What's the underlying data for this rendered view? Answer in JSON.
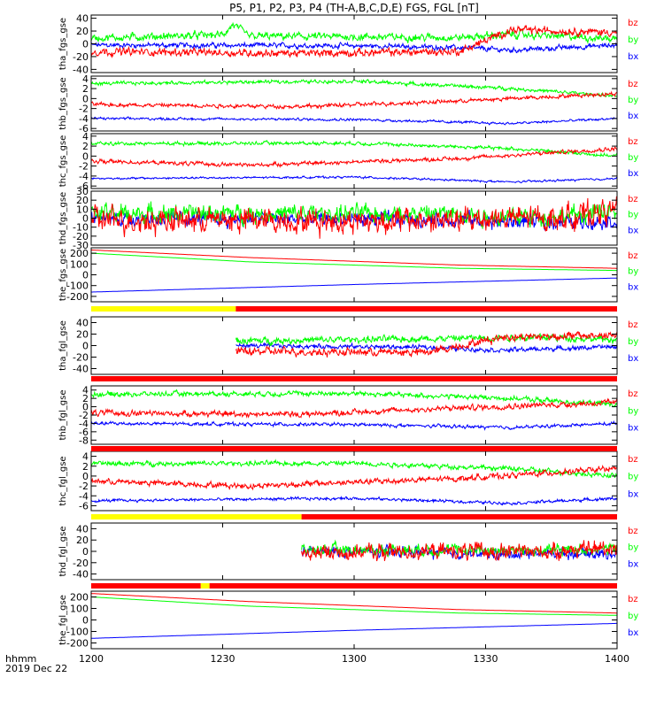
{
  "title": "P5, P1, P2, P3, P4 (TH-A,B,C,D,E) FGS, FGL [nT]",
  "colors": {
    "bx": "#0000ff",
    "by": "#00ff00",
    "bz": "#ff0000",
    "bar_yellow": "#ffff00",
    "bar_red": "#ff0000"
  },
  "xaxis": {
    "label_line1": "hhmm",
    "label_line2": "2019 Dec 22",
    "range": [
      "12:00",
      "14:00"
    ],
    "ticks": [
      {
        "t": "12:00",
        "label": "1200"
      },
      {
        "t": "12:30",
        "label": "1230"
      },
      {
        "t": "13:00",
        "label": "1300"
      },
      {
        "t": "13:30",
        "label": "1330"
      },
      {
        "t": "14:00",
        "label": "1400"
      }
    ]
  },
  "chart_data": [
    {
      "type": "line",
      "ylabel": "tha_fgs_gse",
      "ylim": [
        -45,
        45
      ],
      "yticks": [
        -40,
        -20,
        0,
        20,
        40
      ],
      "data_start": "12:00",
      "data_end": "14:00",
      "legend": [
        "bz",
        "by",
        "bx"
      ],
      "series": [
        {
          "name": "bx",
          "profile": [
            [
              0,
              -2
            ],
            [
              0.5,
              -3
            ],
            [
              0.7,
              -6
            ],
            [
              0.8,
              -10
            ],
            [
              1,
              -2
            ]
          ],
          "noise": 4
        },
        {
          "name": "by",
          "profile": [
            [
              0,
              9
            ],
            [
              0.25,
              14
            ],
            [
              0.27,
              30
            ],
            [
              0.3,
              12
            ],
            [
              0.7,
              10
            ],
            [
              0.8,
              15
            ],
            [
              1,
              8
            ]
          ],
          "noise": 6
        },
        {
          "name": "bz",
          "profile": [
            [
              0,
              -12
            ],
            [
              0.4,
              -15
            ],
            [
              0.7,
              -12
            ],
            [
              0.8,
              22
            ],
            [
              1,
              18
            ]
          ],
          "noise": 6
        }
      ]
    },
    {
      "type": "line",
      "ylabel": "thb_fgs_gse",
      "ylim": [
        -6.5,
        4.5
      ],
      "yticks": [
        -6,
        -4,
        -2,
        0,
        2,
        4
      ],
      "data_start": "12:00",
      "data_end": "14:00",
      "legend": [
        "bz",
        "by",
        "bx"
      ],
      "series": [
        {
          "name": "bx",
          "profile": [
            [
              0,
              -4
            ],
            [
              0.5,
              -4.2
            ],
            [
              0.8,
              -5
            ],
            [
              1,
              -4
            ]
          ],
          "noise": 0.25
        },
        {
          "name": "by",
          "profile": [
            [
              0,
              3
            ],
            [
              0.5,
              3.5
            ],
            [
              0.8,
              2
            ],
            [
              1,
              0.5
            ]
          ],
          "noise": 0.35
        },
        {
          "name": "bz",
          "profile": [
            [
              0,
              -1.2
            ],
            [
              0.4,
              -1.6
            ],
            [
              0.7,
              -0.5
            ],
            [
              1,
              1
            ]
          ],
          "noise": 0.4
        }
      ]
    },
    {
      "type": "line",
      "ylabel": "thc_fgs_gse",
      "ylim": [
        -6.5,
        4.5
      ],
      "yticks": [
        -6,
        -4,
        -2,
        0,
        2,
        4
      ],
      "data_start": "12:00",
      "data_end": "14:00",
      "legend": [
        "bz",
        "by",
        "bx"
      ],
      "series": [
        {
          "name": "bx",
          "profile": [
            [
              0,
              -4.5
            ],
            [
              0.5,
              -4.2
            ],
            [
              0.8,
              -5.2
            ],
            [
              1,
              -4.5
            ]
          ],
          "noise": 0.2
        },
        {
          "name": "by",
          "profile": [
            [
              0,
              2.5
            ],
            [
              0.5,
              2.6
            ],
            [
              0.8,
              1.5
            ],
            [
              1,
              0
            ]
          ],
          "noise": 0.35
        },
        {
          "name": "bz",
          "profile": [
            [
              0,
              -1
            ],
            [
              0.3,
              -1.8
            ],
            [
              0.7,
              -0.5
            ],
            [
              1,
              1.5
            ]
          ],
          "noise": 0.4
        }
      ]
    },
    {
      "type": "line",
      "ylabel": "thd_fgs_gse",
      "ylim": [
        -30,
        30
      ],
      "yticks": [
        -30,
        -20,
        -10,
        0,
        10,
        20,
        30
      ],
      "data_start": "12:00",
      "data_end": "14:00",
      "legend": [
        "bz",
        "by",
        "bx"
      ],
      "series": [
        {
          "name": "bx",
          "profile": [
            [
              0,
              0
            ],
            [
              0.72,
              -2
            ],
            [
              0.74,
              -4
            ],
            [
              0.9,
              -4
            ],
            [
              1,
              -3
            ]
          ],
          "noise": 8
        },
        {
          "name": "by",
          "profile": [
            [
              0,
              5
            ],
            [
              0.72,
              5
            ],
            [
              0.74,
              2
            ],
            [
              0.9,
              2
            ],
            [
              1,
              8
            ]
          ],
          "noise": 10
        },
        {
          "name": "bz",
          "profile": [
            [
              0,
              -2
            ],
            [
              0.72,
              -3
            ],
            [
              0.74,
              0
            ],
            [
              0.9,
              0
            ],
            [
              1,
              10
            ]
          ],
          "noise": 14
        }
      ]
    },
    {
      "type": "line",
      "ylabel": "the_fgs_gse",
      "ylim": [
        -250,
        250
      ],
      "yticks": [
        -200,
        -100,
        0,
        100,
        200
      ],
      "data_start": "12:00",
      "data_end": "14:00",
      "legend": [
        "bz",
        "by",
        "bx"
      ],
      "series": [
        {
          "name": "bx",
          "profile": [
            [
              0,
              -160
            ],
            [
              0.5,
              -90
            ],
            [
              1,
              -30
            ]
          ],
          "noise": 0
        },
        {
          "name": "by",
          "profile": [
            [
              0,
              200
            ],
            [
              0.3,
              120
            ],
            [
              0.7,
              60
            ],
            [
              1,
              40
            ]
          ],
          "noise": 0
        },
        {
          "name": "bz",
          "profile": [
            [
              0,
              230
            ],
            [
              0.3,
              160
            ],
            [
              0.7,
              90
            ],
            [
              1,
              60
            ]
          ],
          "noise": 0
        }
      ]
    },
    {
      "type": "line",
      "ylabel": "tha_fgl_gse",
      "ylim": [
        -50,
        50
      ],
      "yticks": [
        -40,
        -20,
        0,
        20,
        40
      ],
      "data_start": "12:33",
      "data_end": "14:00",
      "legend": [
        "bz",
        "by",
        "bx"
      ],
      "series": [
        {
          "name": "bx",
          "profile": [
            [
              0,
              0
            ],
            [
              0.5,
              -3
            ],
            [
              0.7,
              -8
            ],
            [
              1,
              -2
            ]
          ],
          "noise": 4
        },
        {
          "name": "by",
          "profile": [
            [
              0,
              8
            ],
            [
              0.5,
              12
            ],
            [
              0.8,
              15
            ],
            [
              1,
              10
            ]
          ],
          "noise": 6
        },
        {
          "name": "bz",
          "profile": [
            [
              0,
              -10
            ],
            [
              0.5,
              -12
            ],
            [
              0.7,
              15
            ],
            [
              1,
              18
            ]
          ],
          "noise": 7
        }
      ]
    },
    {
      "type": "line",
      "ylabel": "thb_fgl_gse",
      "ylim": [
        -9,
        5
      ],
      "yticks": [
        -8,
        -6,
        -4,
        -2,
        0,
        2,
        4
      ],
      "data_start": "12:00",
      "data_end": "14:00",
      "legend": [
        "bz",
        "by",
        "bx"
      ],
      "series": [
        {
          "name": "bx",
          "profile": [
            [
              0,
              -4
            ],
            [
              0.5,
              -4.3
            ],
            [
              0.8,
              -5
            ],
            [
              1,
              -4
            ]
          ],
          "noise": 0.4
        },
        {
          "name": "by",
          "profile": [
            [
              0,
              3
            ],
            [
              0.5,
              3.2
            ],
            [
              0.8,
              2
            ],
            [
              1,
              0.5
            ]
          ],
          "noise": 0.6
        },
        {
          "name": "bz",
          "profile": [
            [
              0,
              -1.5
            ],
            [
              0.4,
              -1.8
            ],
            [
              0.7,
              -0.3
            ],
            [
              1,
              1
            ]
          ],
          "noise": 0.7
        }
      ]
    },
    {
      "type": "line",
      "ylabel": "thc_fgl_gse",
      "ylim": [
        -7,
        5
      ],
      "yticks": [
        -6,
        -4,
        -2,
        0,
        2,
        4
      ],
      "data_start": "12:00",
      "data_end": "14:00",
      "legend": [
        "bz",
        "by",
        "bx"
      ],
      "series": [
        {
          "name": "bx",
          "profile": [
            [
              0,
              -5
            ],
            [
              0.5,
              -4.5
            ],
            [
              0.8,
              -5.5
            ],
            [
              1,
              -4.5
            ]
          ],
          "noise": 0.3
        },
        {
          "name": "by",
          "profile": [
            [
              0,
              2.5
            ],
            [
              0.5,
              2.6
            ],
            [
              0.8,
              1.5
            ],
            [
              1,
              0
            ]
          ],
          "noise": 0.5
        },
        {
          "name": "bz",
          "profile": [
            [
              0,
              -1
            ],
            [
              0.3,
              -2
            ],
            [
              0.7,
              -0.5
            ],
            [
              1,
              1.5
            ]
          ],
          "noise": 0.6
        }
      ]
    },
    {
      "type": "line",
      "ylabel": "thd_fgl_gse",
      "ylim": [
        -50,
        50
      ],
      "yticks": [
        -40,
        -20,
        0,
        20,
        40
      ],
      "data_start": "12:48",
      "data_end": "14:00",
      "legend": [
        "bz",
        "by",
        "bx"
      ],
      "series": [
        {
          "name": "bx",
          "profile": [
            [
              0,
              0
            ],
            [
              0.4,
              -2
            ],
            [
              0.6,
              -5
            ],
            [
              0.8,
              -3
            ],
            [
              1,
              -4
            ]
          ],
          "noise": 9
        },
        {
          "name": "by",
          "profile": [
            [
              0,
              2
            ],
            [
              0.4,
              3
            ],
            [
              0.6,
              2
            ],
            [
              0.8,
              2
            ],
            [
              1,
              5
            ]
          ],
          "noise": 10
        },
        {
          "name": "bz",
          "profile": [
            [
              0,
              -3
            ],
            [
              0.4,
              0
            ],
            [
              0.6,
              0
            ],
            [
              0.8,
              0
            ],
            [
              1,
              8
            ]
          ],
          "noise": 14
        }
      ]
    },
    {
      "type": "line",
      "ylabel": "the_fgl_gse",
      "ylim": [
        -250,
        250
      ],
      "yticks": [
        -200,
        -100,
        0,
        100,
        200
      ],
      "data_start": "12:00",
      "data_end": "14:00",
      "legend": [
        "bz",
        "by",
        "bx"
      ],
      "series": [
        {
          "name": "bx",
          "profile": [
            [
              0,
              -160
            ],
            [
              0.5,
              -90
            ],
            [
              1,
              -30
            ]
          ],
          "noise": 0
        },
        {
          "name": "by",
          "profile": [
            [
              0,
              200
            ],
            [
              0.3,
              120
            ],
            [
              0.7,
              60
            ],
            [
              1,
              40
            ]
          ],
          "noise": 0
        },
        {
          "name": "bz",
          "profile": [
            [
              0,
              230
            ],
            [
              0.3,
              160
            ],
            [
              0.7,
              90
            ],
            [
              1,
              60
            ]
          ],
          "noise": 0
        }
      ]
    }
  ],
  "mode_bars": [
    {
      "after_panel": 4,
      "segments": [
        {
          "from": "12:00",
          "to": "12:33",
          "color": "yellow"
        },
        {
          "from": "12:33",
          "to": "14:00",
          "color": "red"
        }
      ]
    },
    {
      "after_panel": 5,
      "segments": [
        {
          "from": "12:00",
          "to": "14:00",
          "color": "red"
        }
      ]
    },
    {
      "after_panel": 6,
      "segments": [
        {
          "from": "12:00",
          "to": "14:00",
          "color": "red"
        }
      ]
    },
    {
      "after_panel": 7,
      "segments": [
        {
          "from": "12:00",
          "to": "12:48",
          "color": "yellow"
        },
        {
          "from": "12:48",
          "to": "14:00",
          "color": "red"
        }
      ]
    },
    {
      "after_panel": 8,
      "segments": [
        {
          "from": "12:00",
          "to": "12:25",
          "color": "red"
        },
        {
          "from": "12:25",
          "to": "12:27",
          "color": "yellow"
        },
        {
          "from": "12:27",
          "to": "14:00",
          "color": "red"
        }
      ]
    }
  ]
}
